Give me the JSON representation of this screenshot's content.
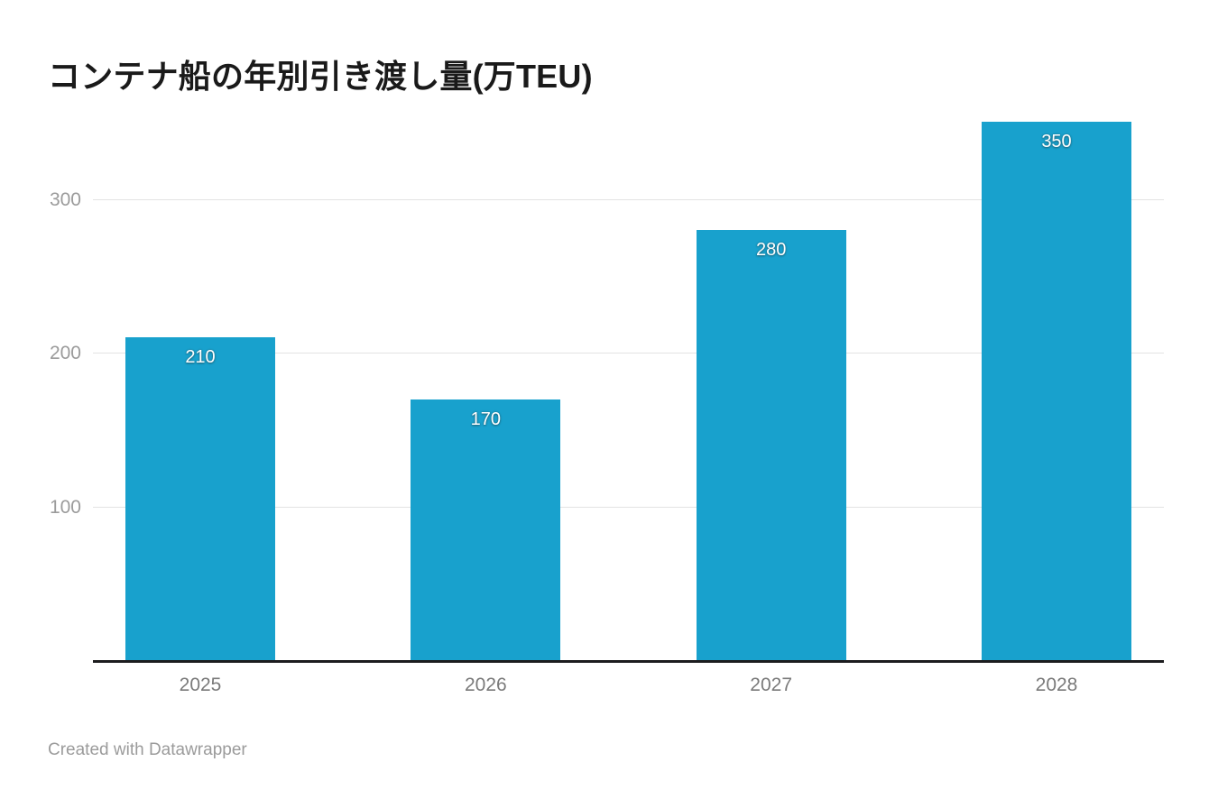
{
  "title": "コンテナ船の年別引き渡し量(万TEU)",
  "footer": {
    "text": "Created with Datawrapper"
  },
  "chart_data": {
    "type": "bar",
    "title": "コンテナ船の年別引き渡し量(万TEU)",
    "categories": [
      "2025",
      "2026",
      "2027",
      "2028"
    ],
    "values": [
      210,
      170,
      280,
      350
    ],
    "value_labels": [
      "210",
      "170",
      "280",
      "350"
    ],
    "xlabel": "",
    "ylabel": "",
    "ylim": [
      0,
      353
    ],
    "yticks": [
      100,
      200,
      300
    ],
    "grid": "horizontal",
    "legend": "none",
    "bar_color": "#18a1cd"
  },
  "colors": {
    "background": "#ffffff",
    "bar": "#18a1cd",
    "gridline": "#e3e3e3",
    "baseline": "#1c1c1e",
    "title_text": "#1a1a1a",
    "ytick_text": "#9b9b9b",
    "xtick_text": "#7a7a7a",
    "value_label_text": "#ffffff",
    "footer_text": "#9b9b9b"
  }
}
